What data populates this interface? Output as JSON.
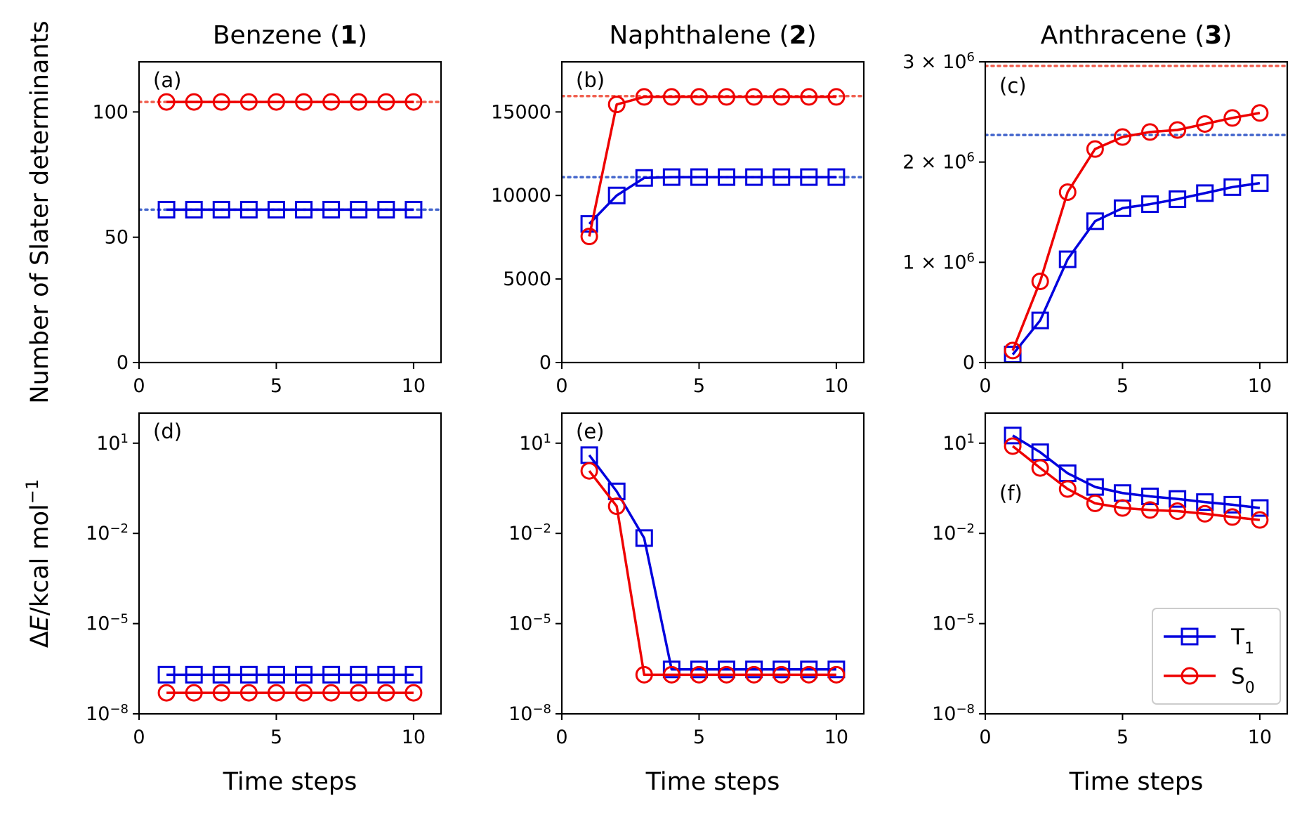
{
  "chart_data": [
    {
      "type": "line",
      "panel_label": "(a)",
      "title": "Benzene (1)",
      "title_name": "Benzene",
      "title_num": "1",
      "ylabel": "Number of Slater determinants",
      "xlabel": "",
      "yscale": "linear",
      "xlim": [
        0,
        11
      ],
      "ylim": [
        0,
        120
      ],
      "xticks": [
        0,
        5,
        10
      ],
      "xtick_labels": [
        "0",
        "5",
        "10"
      ],
      "yticks": [
        0,
        50,
        100
      ],
      "ytick_labels": [
        "0",
        "50",
        "100"
      ],
      "x": [
        1,
        2,
        3,
        4,
        5,
        6,
        7,
        8,
        9,
        10
      ],
      "series": [
        {
          "name": "T1",
          "color": "#0000dd",
          "marker": "square",
          "values": [
            61,
            61,
            61,
            61,
            61,
            61,
            61,
            61,
            61,
            61
          ]
        },
        {
          "name": "S0",
          "color": "#ee0000",
          "marker": "circle",
          "values": [
            104,
            104,
            104,
            104,
            104,
            104,
            104,
            104,
            104,
            104
          ]
        }
      ],
      "reference_lines": [
        {
          "y": 61,
          "color": "#4466cc"
        },
        {
          "y": 104,
          "color": "#f06050"
        }
      ]
    },
    {
      "type": "line",
      "panel_label": "(b)",
      "title": "Naphthalene (2)",
      "title_name": "Naphthalene",
      "title_num": "2",
      "xlabel": "",
      "yscale": "linear",
      "xlim": [
        0,
        11
      ],
      "ylim": [
        0,
        18000
      ],
      "xticks": [
        0,
        5,
        10
      ],
      "xtick_labels": [
        "0",
        "5",
        "10"
      ],
      "yticks": [
        0,
        5000,
        10000,
        15000
      ],
      "ytick_labels": [
        "0",
        "5000",
        "10000",
        "15000"
      ],
      "x": [
        1,
        2,
        3,
        4,
        5,
        6,
        7,
        8,
        9,
        10
      ],
      "series": [
        {
          "name": "T1",
          "color": "#0000dd",
          "marker": "square",
          "values": [
            8300,
            10000,
            11050,
            11100,
            11100,
            11100,
            11100,
            11100,
            11100,
            11100
          ]
        },
        {
          "name": "S0",
          "color": "#ee0000",
          "marker": "circle",
          "values": [
            7550,
            15450,
            15900,
            15900,
            15900,
            15900,
            15900,
            15900,
            15900,
            15900
          ]
        }
      ],
      "reference_lines": [
        {
          "y": 11100,
          "color": "#4466cc"
        },
        {
          "y": 15950,
          "color": "#f06050"
        }
      ]
    },
    {
      "type": "line",
      "panel_label": "(c)",
      "title": "Anthracene (3)",
      "title_name": "Anthracene",
      "title_num": "3",
      "xlabel": "",
      "yscale": "linear",
      "xlim": [
        0,
        11
      ],
      "ylim": [
        0,
        3000000
      ],
      "xticks": [
        0,
        5,
        10
      ],
      "xtick_labels": [
        "0",
        "5",
        "10"
      ],
      "yticks": [
        0,
        1000000,
        2000000,
        3000000
      ],
      "ytick_labels": [
        "0",
        "1 × 10⁶",
        "2 × 10⁶",
        "3 × 10⁶"
      ],
      "x": [
        1,
        2,
        3,
        4,
        5,
        6,
        7,
        8,
        9,
        10
      ],
      "series": [
        {
          "name": "T1",
          "color": "#0000dd",
          "marker": "square",
          "values": [
            80000,
            420000,
            1030000,
            1410000,
            1540000,
            1580000,
            1630000,
            1690000,
            1750000,
            1790000
          ]
        },
        {
          "name": "S0",
          "color": "#ee0000",
          "marker": "circle",
          "values": [
            120000,
            810000,
            1700000,
            2130000,
            2250000,
            2300000,
            2320000,
            2380000,
            2440000,
            2490000
          ]
        }
      ],
      "reference_lines": [
        {
          "y": 2270000,
          "color": "#4466cc"
        },
        {
          "y": 2960000,
          "color": "#f06050"
        }
      ]
    },
    {
      "type": "line",
      "panel_label": "(d)",
      "ylabel": "ΔE/kcal mol⁻¹",
      "xlabel": "Time steps",
      "yscale": "log",
      "xlim": [
        0,
        11
      ],
      "ylim": [
        1e-08,
        100
      ],
      "xticks": [
        0,
        5,
        10
      ],
      "xtick_labels": [
        "0",
        "5",
        "10"
      ],
      "yticks": [
        1e-08,
        1e-05,
        0.01,
        10
      ],
      "ytick_labels": [
        "10⁻⁸",
        "10⁻⁵",
        "10⁻²",
        "10¹"
      ],
      "x": [
        1,
        2,
        3,
        4,
        5,
        6,
        7,
        8,
        9,
        10
      ],
      "series": [
        {
          "name": "T1",
          "color": "#0000dd",
          "marker": "square",
          "values": [
            2e-07,
            2e-07,
            2e-07,
            2e-07,
            2e-07,
            2e-07,
            2e-07,
            2e-07,
            2e-07,
            2e-07
          ]
        },
        {
          "name": "S0",
          "color": "#ee0000",
          "marker": "circle",
          "values": [
            5e-08,
            5e-08,
            5e-08,
            5e-08,
            5e-08,
            5e-08,
            5e-08,
            5e-08,
            5e-08,
            5e-08
          ]
        }
      ]
    },
    {
      "type": "line",
      "panel_label": "(e)",
      "xlabel": "Time steps",
      "yscale": "log",
      "xlim": [
        0,
        11
      ],
      "ylim": [
        1e-08,
        100
      ],
      "xticks": [
        0,
        5,
        10
      ],
      "xtick_labels": [
        "0",
        "5",
        "10"
      ],
      "yticks": [
        1e-08,
        1e-05,
        0.01,
        10
      ],
      "ytick_labels": [
        "10⁻⁸",
        "10⁻⁵",
        "10⁻²",
        "10¹"
      ],
      "x": [
        1,
        2,
        3,
        4,
        5,
        6,
        7,
        8,
        9,
        10
      ],
      "series": [
        {
          "name": "T1",
          "color": "#0000dd",
          "marker": "square",
          "values": [
            4,
            0.25,
            0.007,
            3e-07,
            3e-07,
            3e-07,
            3e-07,
            3e-07,
            3e-07,
            3e-07
          ]
        },
        {
          "name": "S0",
          "color": "#ee0000",
          "marker": "circle",
          "values": [
            1.2,
            0.08,
            2e-07,
            2e-07,
            2e-07,
            2e-07,
            2e-07,
            2e-07,
            2e-07,
            2e-07
          ]
        }
      ]
    },
    {
      "type": "line",
      "panel_label": "(f)",
      "xlabel": "Time steps",
      "yscale": "log",
      "xlim": [
        0,
        11
      ],
      "ylim": [
        1e-08,
        100
      ],
      "xticks": [
        0,
        5,
        10
      ],
      "xtick_labels": [
        "0",
        "5",
        "10"
      ],
      "yticks": [
        1e-08,
        1e-05,
        0.01,
        10
      ],
      "ytick_labels": [
        "10⁻⁸",
        "10⁻⁵",
        "10⁻²",
        "10¹"
      ],
      "x": [
        1,
        2,
        3,
        4,
        5,
        6,
        7,
        8,
        9,
        10
      ],
      "series": [
        {
          "name": "T1",
          "color": "#0000dd",
          "marker": "square",
          "values": [
            18,
            5,
            1,
            0.35,
            0.22,
            0.17,
            0.14,
            0.11,
            0.09,
            0.07
          ]
        },
        {
          "name": "S0",
          "color": "#ee0000",
          "marker": "circle",
          "values": [
            8,
            1.5,
            0.3,
            0.1,
            0.07,
            0.06,
            0.055,
            0.045,
            0.035,
            0.028
          ]
        }
      ],
      "legend": {
        "placement": "lower-right",
        "entries": [
          {
            "name": "T1",
            "base": "T",
            "sub": "1",
            "color": "#0000dd",
            "marker": "square"
          },
          {
            "name": "S0",
            "base": "S",
            "sub": "0",
            "color": "#ee0000",
            "marker": "circle"
          }
        ]
      }
    }
  ]
}
